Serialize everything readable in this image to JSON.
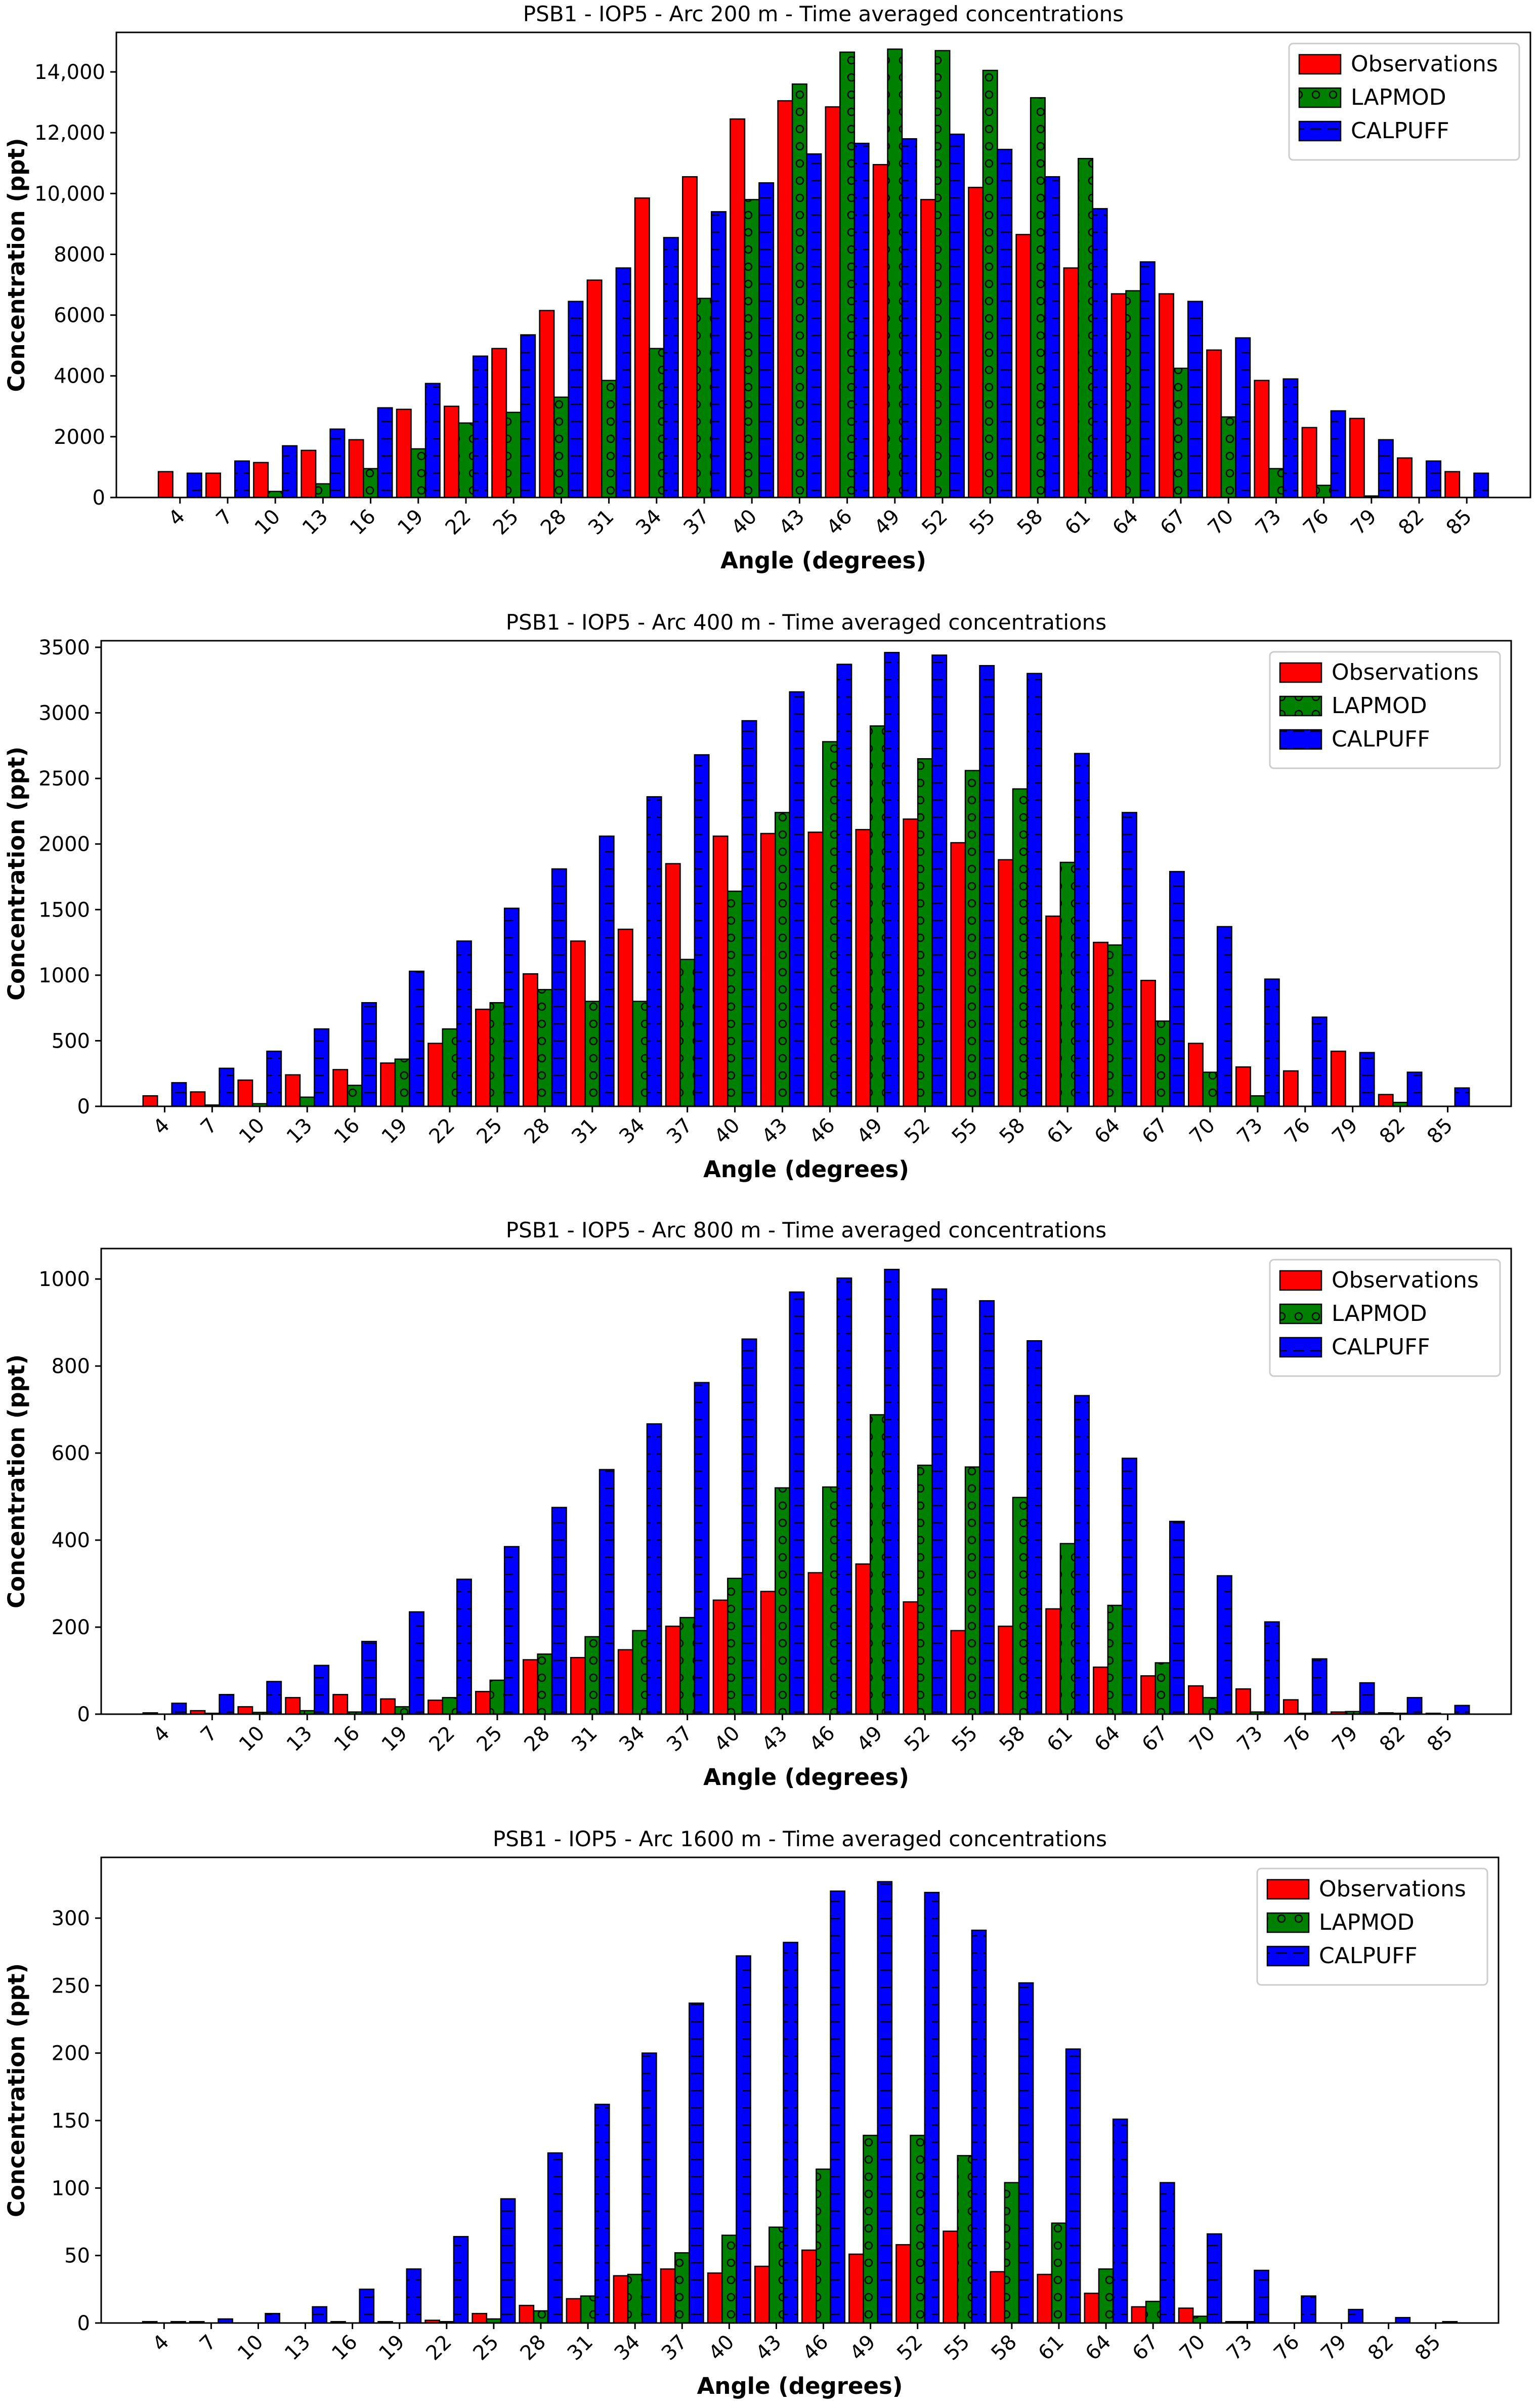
{
  "palette": {
    "observations": "#ff0000",
    "lapmod": "#008000",
    "calpuff": "#0000ff"
  },
  "chart_data": [
    {
      "type": "bar",
      "title": "PSB1 - IOP5 - Arc 200 m - Time averaged concentrations",
      "xlabel": "Angle (degrees)",
      "ylabel": "Concentration (ppt)",
      "ylim": [
        0,
        15300
      ],
      "yticks": [
        0,
        2000,
        4000,
        6000,
        8000,
        10000,
        12000,
        14000
      ],
      "ytick_labels": [
        "0",
        "2000",
        "4000",
        "6000",
        "8000",
        "10,000",
        "12,000",
        "14,000"
      ],
      "legend": "top-right",
      "grid": false,
      "categories": [
        "4",
        "7",
        "10",
        "13",
        "16",
        "19",
        "22",
        "25",
        "28",
        "31",
        "34",
        "37",
        "40",
        "43",
        "46",
        "49",
        "52",
        "55",
        "58",
        "61",
        "64",
        "67",
        "70",
        "73",
        "76",
        "79",
        "82",
        "85"
      ],
      "series": [
        {
          "name": "Observations",
          "color": "#ff0000",
          "hatch": "none",
          "values": [
            850,
            800,
            1150,
            1550,
            1900,
            2900,
            3000,
            4900,
            6150,
            7150,
            9850,
            10550,
            12450,
            13050,
            12850,
            10950,
            9800,
            10200,
            8650,
            7550,
            6700,
            6700,
            4850,
            3850,
            2300,
            2600,
            1300,
            850
          ]
        },
        {
          "name": "LAPMOD",
          "color": "#008000",
          "hatch": "circles",
          "values": [
            0,
            0,
            200,
            450,
            950,
            1600,
            2450,
            2800,
            3300,
            3850,
            4900,
            6550,
            9800,
            13600,
            14650,
            14750,
            14700,
            14050,
            13150,
            11150,
            6800,
            4250,
            2650,
            950,
            400,
            50,
            0,
            0
          ]
        },
        {
          "name": "CALPUFF",
          "color": "#0000ff",
          "hatch": "dashes",
          "values": [
            800,
            1200,
            1700,
            2250,
            2950,
            3750,
            4650,
            5350,
            6450,
            7550,
            8550,
            9400,
            10350,
            11300,
            11650,
            11800,
            11950,
            11450,
            10550,
            9500,
            7750,
            6450,
            5250,
            3900,
            2850,
            1900,
            1200,
            800
          ]
        }
      ]
    },
    {
      "type": "bar",
      "title": "PSB1 - IOP5 - Arc 400 m - Time averaged concentrations",
      "xlabel": "Angle (degrees)",
      "ylabel": "Concentration (ppt)",
      "ylim": [
        0,
        3550
      ],
      "yticks": [
        0,
        500,
        1000,
        1500,
        2000,
        2500,
        3000,
        3500
      ],
      "ytick_labels": [
        "0",
        "500",
        "1000",
        "1500",
        "2000",
        "2500",
        "3000",
        "3500"
      ],
      "legend": "top-right",
      "grid": false,
      "categories": [
        "4",
        "7",
        "10",
        "13",
        "16",
        "19",
        "22",
        "25",
        "28",
        "31",
        "34",
        "37",
        "40",
        "43",
        "46",
        "49",
        "52",
        "55",
        "58",
        "61",
        "64",
        "67",
        "70",
        "73",
        "76",
        "79",
        "82",
        "85"
      ],
      "series": [
        {
          "name": "Observations",
          "color": "#ff0000",
          "hatch": "none",
          "values": [
            80,
            110,
            200,
            240,
            280,
            330,
            480,
            740,
            1010,
            1260,
            1350,
            1850,
            2060,
            2080,
            2090,
            2110,
            2190,
            2010,
            1880,
            1450,
            1250,
            960,
            480,
            300,
            270,
            420,
            90,
            0
          ]
        },
        {
          "name": "LAPMOD",
          "color": "#008000",
          "hatch": "circles",
          "values": [
            0,
            10,
            20,
            70,
            160,
            360,
            590,
            790,
            890,
            800,
            800,
            1120,
            1640,
            2240,
            2780,
            2900,
            2650,
            2560,
            2420,
            1860,
            1230,
            650,
            260,
            80,
            0,
            0,
            30,
            0
          ]
        },
        {
          "name": "CALPUFF",
          "color": "#0000ff",
          "hatch": "dashes",
          "values": [
            180,
            290,
            420,
            590,
            790,
            1030,
            1260,
            1510,
            1810,
            2060,
            2360,
            2680,
            2940,
            3160,
            3370,
            3460,
            3440,
            3360,
            3300,
            2690,
            2240,
            1790,
            1370,
            970,
            680,
            410,
            260,
            140
          ]
        }
      ]
    },
    {
      "type": "bar",
      "title": "PSB1 - IOP5 - Arc 800 m - Time averaged concentrations",
      "xlabel": "Angle (degrees)",
      "ylabel": "Concentration (ppt)",
      "ylim": [
        0,
        1070
      ],
      "yticks": [
        0,
        200,
        400,
        600,
        800,
        1000
      ],
      "ytick_labels": [
        "0",
        "200",
        "400",
        "600",
        "800",
        "1000"
      ],
      "legend": "top-right",
      "grid": false,
      "categories": [
        "4",
        "7",
        "10",
        "13",
        "16",
        "19",
        "22",
        "25",
        "28",
        "31",
        "34",
        "37",
        "40",
        "43",
        "46",
        "49",
        "52",
        "55",
        "58",
        "61",
        "64",
        "67",
        "70",
        "73",
        "76",
        "79",
        "82",
        "85"
      ],
      "series": [
        {
          "name": "Observations",
          "color": "#ff0000",
          "hatch": "none",
          "values": [
            3,
            8,
            17,
            38,
            45,
            35,
            32,
            52,
            125,
            130,
            148,
            202,
            262,
            282,
            325,
            345,
            258,
            192,
            202,
            242,
            108,
            88,
            65,
            58,
            33,
            5,
            3,
            2
          ]
        },
        {
          "name": "LAPMOD",
          "color": "#008000",
          "hatch": "circles",
          "values": [
            0,
            2,
            4,
            8,
            5,
            17,
            38,
            78,
            138,
            178,
            192,
            222,
            312,
            520,
            522,
            688,
            572,
            568,
            498,
            392,
            250,
            118,
            38,
            5,
            2,
            6,
            2,
            0
          ]
        },
        {
          "name": "CALPUFF",
          "color": "#0000ff",
          "hatch": "dashes",
          "values": [
            25,
            45,
            75,
            112,
            167,
            235,
            310,
            385,
            475,
            562,
            667,
            762,
            862,
            970,
            1002,
            1022,
            977,
            950,
            858,
            732,
            588,
            443,
            318,
            212,
            127,
            72,
            38,
            20
          ]
        }
      ]
    },
    {
      "type": "bar",
      "title": "PSB1 - IOP5 - Arc 1600 m - Time averaged concentrations",
      "xlabel": "Angle (degrees)",
      "ylabel": "Concentration (ppt)",
      "ylim": [
        0,
        345
      ],
      "yticks": [
        0,
        50,
        100,
        150,
        200,
        250,
        300
      ],
      "ytick_labels": [
        "0",
        "50",
        "100",
        "150",
        "200",
        "250",
        "300"
      ],
      "legend": "top-right",
      "grid": false,
      "categories": [
        "4",
        "7",
        "10",
        "13",
        "16",
        "19",
        "22",
        "25",
        "28",
        "31",
        "34",
        "37",
        "40",
        "43",
        "46",
        "49",
        "52",
        "55",
        "58",
        "61",
        "64",
        "67",
        "70",
        "73",
        "76",
        "79",
        "82",
        "85"
      ],
      "series": [
        {
          "name": "Observations",
          "color": "#ff0000",
          "hatch": "none",
          "values": [
            1,
            1,
            0,
            0,
            1,
            1,
            2,
            7,
            13,
            18,
            35,
            40,
            37,
            42,
            54,
            51,
            58,
            68,
            38,
            36,
            22,
            12,
            11,
            1,
            0,
            0,
            0,
            0
          ]
        },
        {
          "name": "LAPMOD",
          "color": "#008000",
          "hatch": "circles",
          "values": [
            0,
            0,
            0,
            0,
            0,
            0,
            1,
            3,
            9,
            20,
            36,
            52,
            65,
            71,
            114,
            139,
            139,
            124,
            104,
            74,
            40,
            16,
            5,
            1,
            0,
            0,
            0,
            0
          ]
        },
        {
          "name": "CALPUFF",
          "color": "#0000ff",
          "hatch": "dashes",
          "values": [
            1,
            3,
            7,
            12,
            25,
            40,
            64,
            92,
            126,
            162,
            200,
            237,
            272,
            282,
            320,
            327,
            319,
            291,
            252,
            203,
            151,
            104,
            66,
            39,
            20,
            10,
            4,
            1
          ]
        }
      ]
    }
  ]
}
